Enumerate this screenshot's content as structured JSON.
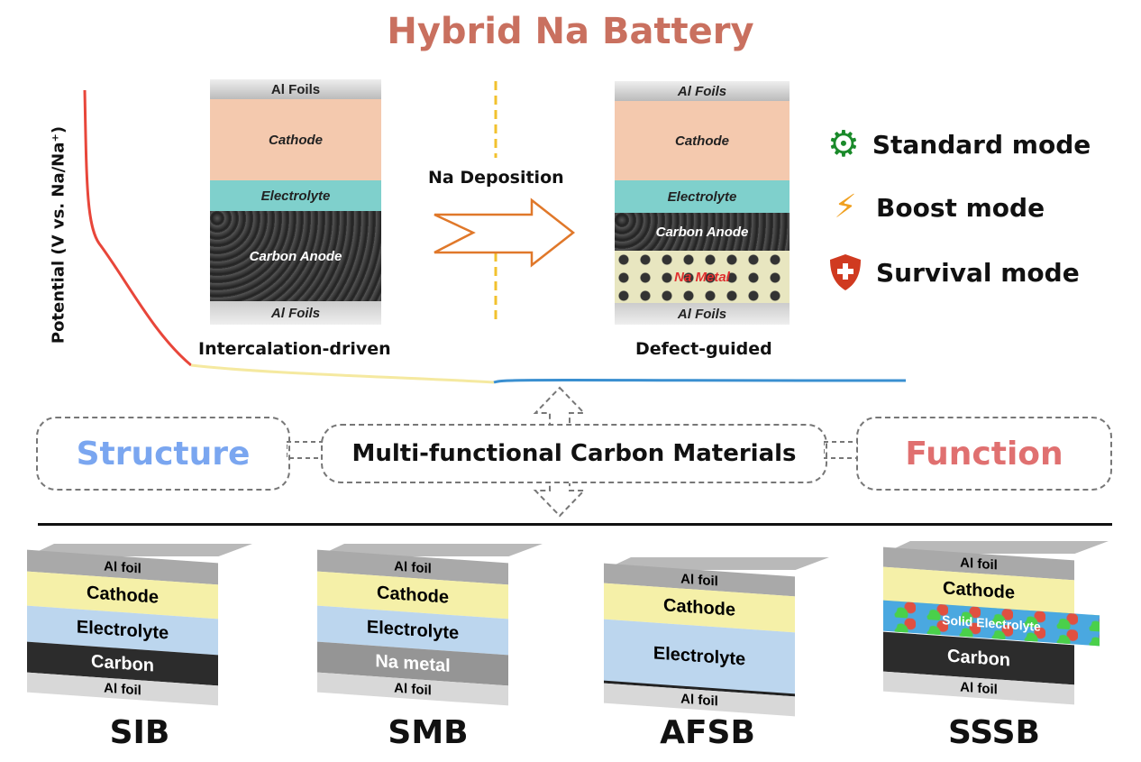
{
  "title": "Hybrid Na Battery",
  "y_axis_label": "Potential (V vs. Na/Na⁺)",
  "left_cell": {
    "caption": "Intercalation-driven",
    "layers": [
      "Al Foils",
      "Cathode",
      "Electrolyte",
      "Carbon Anode",
      "Al Foils"
    ]
  },
  "right_cell": {
    "caption": "Defect-guided",
    "layers": [
      "Al Foils",
      "Cathode",
      "Electrolyte",
      "Carbon Anode",
      "Na Metal",
      "Al Foils"
    ]
  },
  "arrow_label": "Na Deposition",
  "modes": [
    {
      "label": "Standard mode",
      "icon": "gear-icon",
      "color": "#1a8a2a"
    },
    {
      "label": "Boost mode",
      "icon": "lightning-icon",
      "color": "#f0a020"
    },
    {
      "label": "Survival mode",
      "icon": "shield-cross-icon",
      "color": "#d03a20"
    }
  ],
  "middle": {
    "left": "Structure",
    "center": "Multi-functional Carbon Materials",
    "right": "Function",
    "left_color": "#7aa6f0",
    "right_color": "#e07070"
  },
  "batteries": [
    {
      "name": "SIB",
      "layers": [
        "Al foil",
        "Cathode",
        "Electrolyte",
        "Carbon",
        "Al foil"
      ]
    },
    {
      "name": "SMB",
      "layers": [
        "Al foil",
        "Cathode",
        "Electrolyte",
        "Na metal",
        "Al foil"
      ]
    },
    {
      "name": "AFSB",
      "layers": [
        "Al foil",
        "Cathode",
        "Electrolyte",
        "Al foil"
      ]
    },
    {
      "name": "SSSB",
      "layers": [
        "Al foil",
        "Cathode",
        "Solid Electrolyte",
        "Carbon",
        "Al foil"
      ]
    }
  ]
}
